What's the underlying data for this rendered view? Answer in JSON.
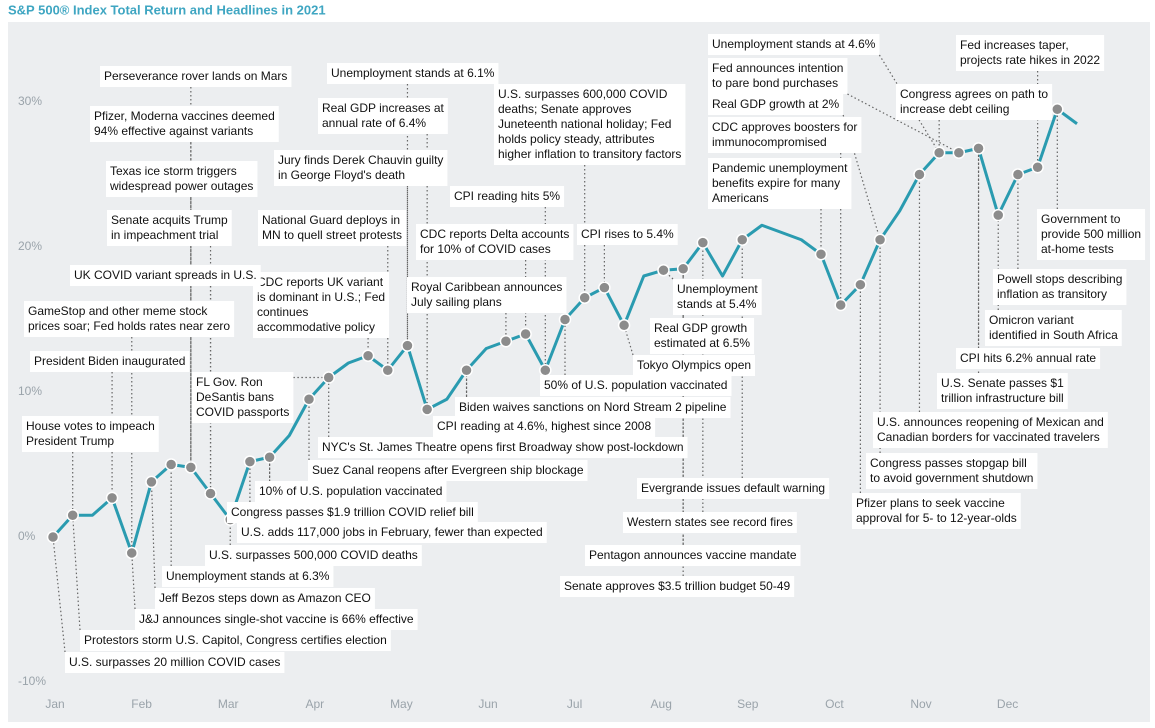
{
  "chart_data": {
    "type": "line",
    "title": "S&P 500® Index Total Return and Headlines in 2021",
    "xticks": [
      "Jan",
      "Feb",
      "Mar",
      "Apr",
      "May",
      "Jun",
      "Jul",
      "Aug",
      "Sep",
      "Oct",
      "Nov",
      "Dec"
    ],
    "ylim": [
      -10,
      30.5
    ],
    "yticks": [
      {
        "value": -10,
        "label": "-10%"
      },
      {
        "value": 0,
        "label": "0%"
      },
      {
        "value": 10,
        "label": "10%"
      },
      {
        "value": 20,
        "label": "20%"
      },
      {
        "value": 30,
        "label": "30%"
      }
    ],
    "grid": false,
    "series": [
      {
        "color": "#2a9bb0",
        "values": [
          0,
          1.5,
          1.5,
          2.7,
          -1.1,
          3.8,
          5,
          4.8,
          3,
          1.2,
          5.2,
          5.5,
          7,
          9.5,
          11,
          12,
          12.5,
          11.5,
          13.2,
          8.8,
          9.5,
          11.5,
          13,
          13.5,
          14,
          11.5,
          15,
          16.5,
          17.2,
          14.6,
          18,
          18.4,
          18.5,
          20.3,
          18,
          20.5,
          21.5,
          21,
          20.5,
          19.5,
          16,
          17.4,
          20.5,
          22.5,
          25,
          26.5,
          26.5,
          26.8,
          22.2,
          25,
          25.5,
          29.5,
          28.5
        ]
      }
    ],
    "annotations": [
      [
        "U.S. surpasses 20 million COVID cases"
      ],
      [
        "Protestors storm U.S. Capitol, Congress certifies election"
      ],
      [
        "J&J announces single-shot vaccine is 66% effective"
      ],
      [
        "Jeff Bezos steps down as Amazon CEO"
      ],
      [
        "Unemployment stands at 6.3%"
      ],
      [
        "U.S. surpasses 500,000 COVID deaths"
      ],
      [
        "U.S. adds 117,000 jobs in February, fewer than expected"
      ],
      [
        "Congress passes $1.9 trillion COVID relief bill"
      ],
      [
        "10% of U.S. population vaccinated"
      ],
      [
        "Suez Canal reopens after Evergreen ship blockage"
      ],
      [
        "NYC's St. James Theatre opens first Broadway show post-lockdown"
      ],
      [
        "FL Gov. Ron",
        "DeSantis bans",
        "COVID passports"
      ],
      [
        "CPI reading at 4.6%, highest since 2008"
      ],
      [
        "Biden waives sanctions on Nord Stream 2 pipeline"
      ],
      [
        "50% of U.S. population vaccinated"
      ],
      [
        "CDC reports UK variant",
        "is dominant in U.S.; Fed",
        "continues",
        "accommodative policy"
      ],
      [
        "Royal Caribbean announces",
        "July sailing plans"
      ],
      [
        "National Guard deploys in",
        "MN to quell street protests"
      ],
      [
        "CDC reports Delta accounts",
        "for 10% of COVID cases"
      ],
      [
        "CPI reading hits 5%"
      ],
      [
        "Jury finds Derek Chauvin guilty",
        "in George Floyd's death"
      ],
      [
        "Real GDP increases at",
        "annual rate of 6.4%"
      ],
      [
        "Unemployment stands at 6.1%"
      ],
      [
        "U.S. surpasses 600,000 COVID",
        "deaths; Senate approves",
        "Juneteenth national holiday; Fed",
        "holds policy steady, attributes",
        "higher inflation to transitory factors"
      ],
      [
        "CPI rises to 5.4%"
      ],
      [
        "Unemployment",
        "stands at 5.4%"
      ],
      [
        "Real GDP growth",
        "estimated at 6.5%"
      ],
      [
        "Tokyo Olympics open"
      ],
      [
        "Evergrande issues default warning"
      ],
      [
        "Western states see record fires"
      ],
      [
        "Pentagon announces vaccine mandate"
      ],
      [
        "Senate approves $3.5 trillion budget 50-49"
      ],
      [
        "Perseverance rover lands on Mars"
      ],
      [
        "Pfizer, Moderna vaccines deemed",
        "94% effective against variants"
      ],
      [
        "Texas ice storm triggers",
        "widespread power outages"
      ],
      [
        "Senate acquits Trump",
        "in impeachment trial"
      ],
      [
        "UK COVID variant spreads in U.S."
      ],
      [
        "GameStop and other meme stock",
        "prices soar; Fed holds rates near zero"
      ],
      [
        "President Biden inaugurated"
      ],
      [
        "House votes to impeach",
        "President Trump"
      ],
      [
        "Unemployment stands at 4.6%"
      ],
      [
        "Fed announces intention",
        "to pare bond purchases"
      ],
      [
        "Real GDP growth at 2%"
      ],
      [
        "CDC approves boosters for",
        "immunocompromised"
      ],
      [
        "Pandemic unemployment",
        "benefits expire for many",
        "Americans"
      ],
      [
        "Fed increases taper,",
        "projects rate hikes in 2022"
      ],
      [
        "Congress agrees on path to",
        "increase debt ceiling"
      ],
      [
        "Government to",
        "provide 500 million",
        "at-home tests"
      ],
      [
        "Powell stops describing",
        "inflation as transitory"
      ],
      [
        "Omicron variant",
        "identified in South Africa"
      ],
      [
        "CPI hits 6.2% annual rate"
      ],
      [
        "U.S. Senate passes $1",
        "trillion infrastructure bill"
      ],
      [
        "U.S. announces reopening of Mexican and",
        "Canadian borders for vaccinated travelers"
      ],
      [
        "Congress passes stopgap bill",
        "to avoid government shutdown"
      ],
      [
        "Pfizer plans to seek vaccine",
        "approval for 5- to 12-year-olds"
      ]
    ]
  }
}
